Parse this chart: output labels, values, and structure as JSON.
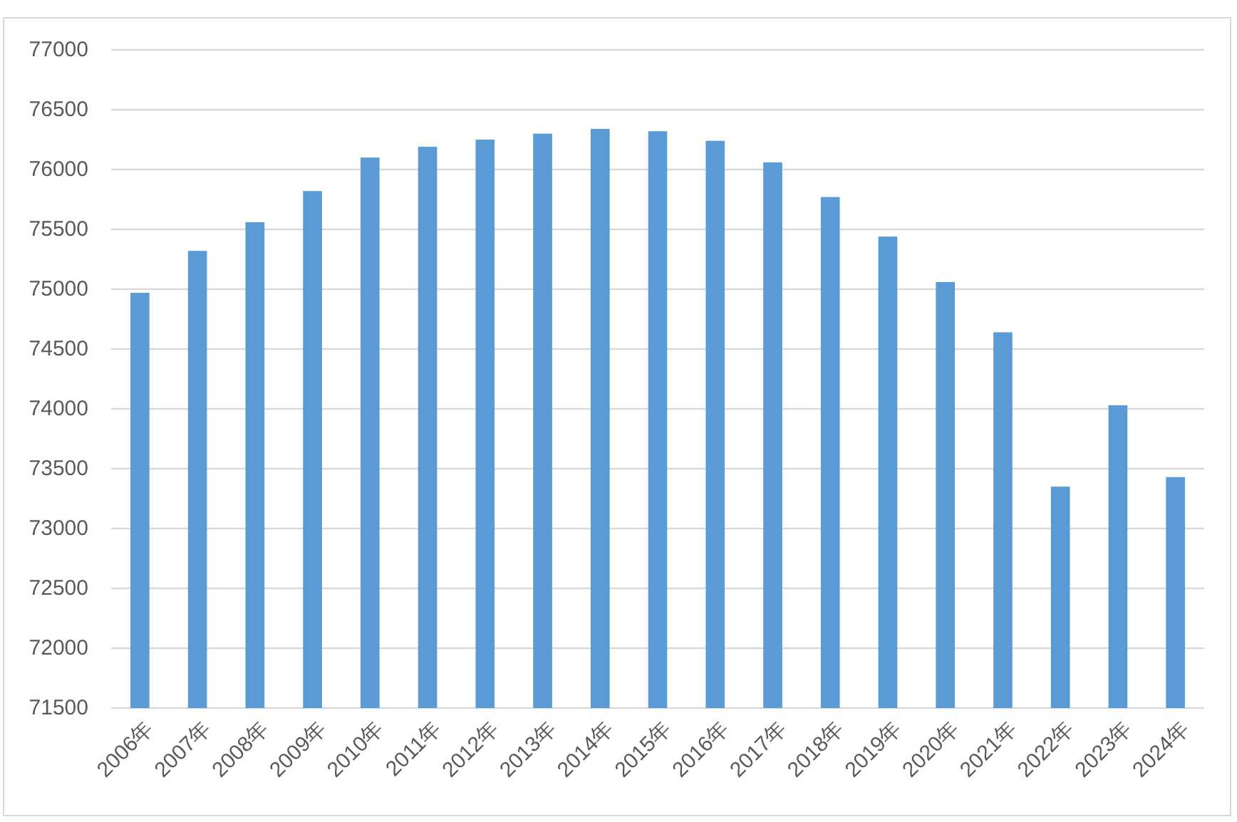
{
  "chart_data": {
    "type": "bar",
    "categories": [
      "2006年",
      "2007年",
      "2008年",
      "2009年",
      "2010年",
      "2011年",
      "2012年",
      "2013年",
      "2014年",
      "2015年",
      "2016年",
      "2017年",
      "2018年",
      "2019年",
      "2020年",
      "2021年",
      "2022年",
      "2023年",
      "2024年"
    ],
    "values": [
      74970,
      75320,
      75560,
      75820,
      76100,
      76190,
      76250,
      76300,
      76340,
      76320,
      76240,
      76060,
      75770,
      75440,
      75060,
      74640,
      73350,
      74030,
      73430
    ],
    "color": "#5b9bd5",
    "ylim": [
      71500,
      77000
    ],
    "yticks": [
      71500,
      72000,
      72500,
      73000,
      73500,
      74000,
      74500,
      75000,
      75500,
      76000,
      76500,
      77000
    ],
    "grid": "y"
  }
}
